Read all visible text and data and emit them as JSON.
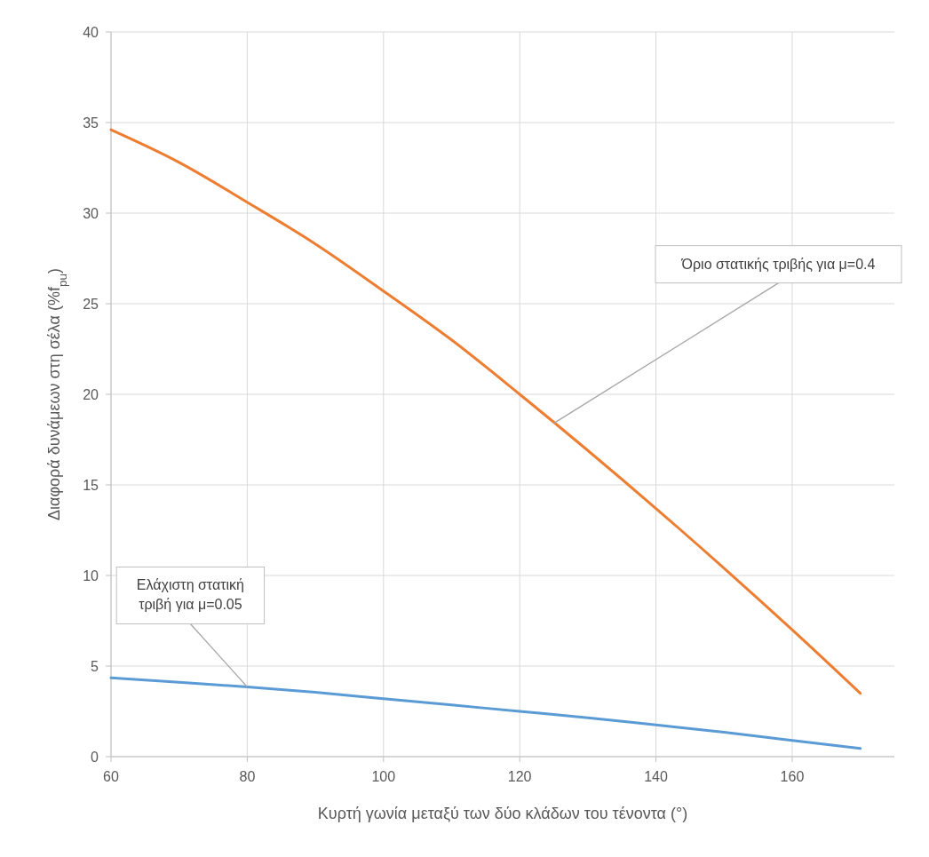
{
  "chart_data": {
    "type": "line",
    "xlabel": "Κυρτή γωνία μεταξύ των δύο κλάδων του τένοντα (°)",
    "ylabel": "Διαφορά δυνάμεων στη σέλα (%f$_{pu}$)",
    "x": [
      60,
      70,
      80,
      90,
      100,
      110,
      120,
      130,
      140,
      150,
      160,
      170
    ],
    "series": [
      {
        "color": "#ed7d31",
        "values": [
          34.6,
          32.8,
          30.6,
          28.3,
          25.7,
          23.0,
          20.0,
          16.9,
          13.7,
          10.4,
          7.0,
          3.5
        ]
      },
      {
        "color": "#5b9bd5",
        "values": [
          4.35,
          4.1,
          3.85,
          3.55,
          3.2,
          2.85,
          2.5,
          2.15,
          1.75,
          1.35,
          0.9,
          0.45
        ]
      }
    ],
    "xlim": [
      60,
      175
    ],
    "xticks": [
      60,
      80,
      100,
      120,
      140,
      160
    ],
    "ylim": [
      0,
      40
    ],
    "yticks": [
      0,
      5,
      10,
      15,
      20,
      25,
      30,
      35,
      40
    ],
    "grid": true,
    "marker": "none",
    "line_style": "solid",
    "annotations": [
      {
        "text": "Όριο στατικής τριβής για μ=0.4",
        "x": 125,
        "y": 18.4
      },
      {
        "text": "Ελάχιστη στατική τριβή για μ=0.05",
        "x": 80,
        "y": 3.85
      }
    ]
  }
}
